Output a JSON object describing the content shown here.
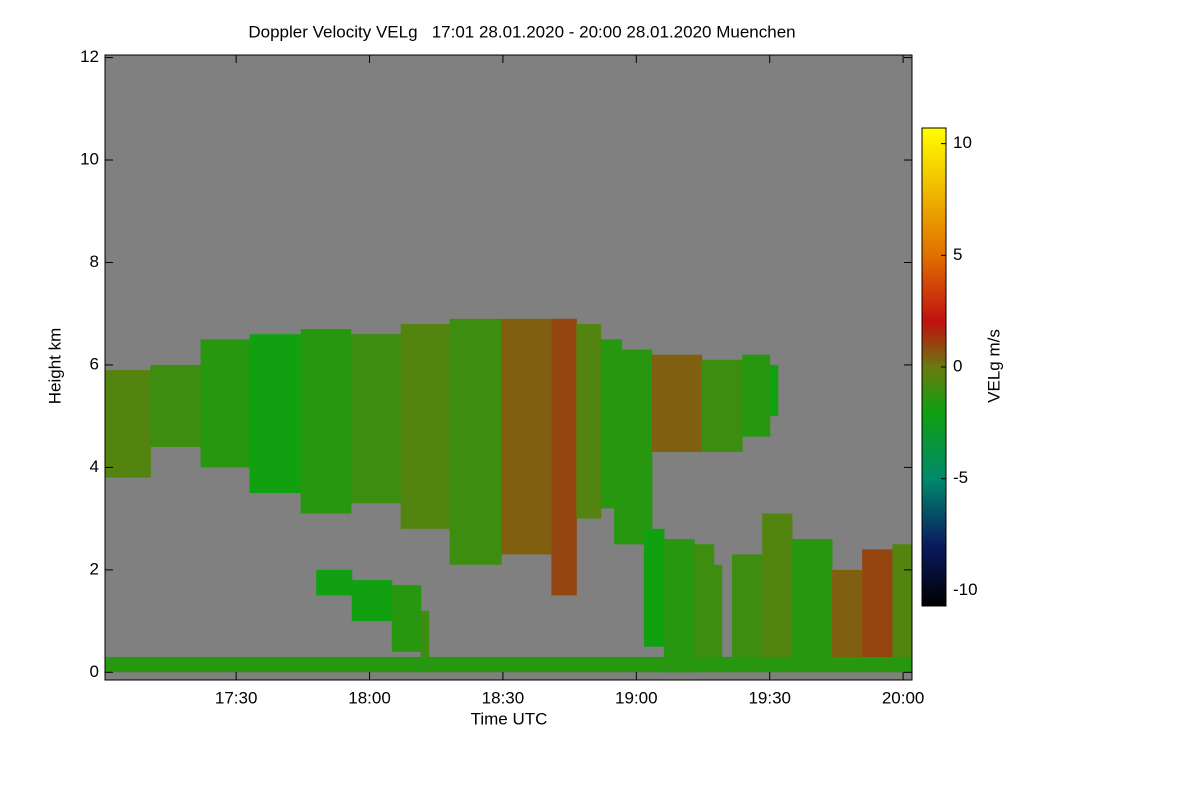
{
  "chart_data": {
    "type": "time-height",
    "title": "Doppler Velocity VELg   17:01 28.01.2020 - 20:00 28.01.2020 Muenchen",
    "xlabel": "Time UTC",
    "ylabel": "Height km",
    "colorbar_label": "VELg m/s",
    "background": "#808080",
    "xlim": [
      1020.5,
      1202
    ],
    "xticks": [
      {
        "value": 1050,
        "label": "17:30"
      },
      {
        "value": 1080,
        "label": "18:00"
      },
      {
        "value": 1110,
        "label": "18:30"
      },
      {
        "value": 1140,
        "label": "19:00"
      },
      {
        "value": 1170,
        "label": "19:30"
      },
      {
        "value": 1200,
        "label": "20:00"
      }
    ],
    "ylim": [
      -0.15,
      12.05
    ],
    "yticks": [
      0,
      2,
      4,
      6,
      8,
      10,
      12
    ],
    "clim": [
      -10.7,
      10.7
    ],
    "cticks": [
      -10,
      -5,
      0,
      5,
      10
    ],
    "colormap": [
      {
        "value": -10.7,
        "color": "#000000"
      },
      {
        "value": -8,
        "color": "#0a1a60"
      },
      {
        "value": -5,
        "color": "#008a6a"
      },
      {
        "value": -2,
        "color": "#10a010"
      },
      {
        "value": 0,
        "color": "#6a7a10"
      },
      {
        "value": 2,
        "color": "#c01010"
      },
      {
        "value": 5,
        "color": "#e07000"
      },
      {
        "value": 10.7,
        "color": "#ffff00"
      }
    ],
    "layers": [
      {
        "x": [
          1020.5,
          1030.7,
          1042,
          1053,
          1064.5,
          1075.8,
          1087,
          1098,
          1109.6,
          1120.9,
          1126.5,
          1132,
          1136.7,
          1143.5,
          1154.7,
          1163.8,
          1170
        ],
        "base": [
          3.8,
          4.4,
          4.0,
          3.5,
          3.1,
          3.3,
          2.8,
          2.1,
          2.3,
          1.5,
          3.0,
          3.2,
          2.5,
          4.3,
          4.3,
          4.6,
          5.0
        ],
        "top": [
          5.9,
          6.0,
          6.5,
          6.6,
          6.7,
          6.6,
          6.8,
          6.9,
          6.9,
          6.9,
          6.8,
          6.5,
          6.3,
          6.2,
          6.1,
          6.2,
          6.0
        ],
        "velocity": [
          -0.5,
          -1,
          -1.5,
          -2,
          -1.5,
          -1,
          -0.5,
          -1,
          0.5,
          1,
          -0.5,
          -1.5,
          -1.5,
          0.5,
          -1,
          -1.5,
          -2
        ]
      },
      {
        "x": [
          1135,
          1141.7,
          1146.2,
          1153,
          1157.4
        ],
        "base": [
          2.5,
          0.5,
          0,
          0.1,
          0.2
        ],
        "top": [
          3.2,
          2.8,
          2.6,
          2.5,
          2.1
        ],
        "velocity": [
          -1.5,
          -2,
          -1.5,
          -1,
          -1
        ]
      },
      {
        "x": [
          1068,
          1076,
          1085,
          1091.5
        ],
        "base": [
          1.5,
          1.0,
          0.4,
          0.2
        ],
        "top": [
          2.0,
          1.8,
          1.7,
          1.2
        ],
        "velocity": [
          -2,
          -2,
          -1.5,
          -1
        ]
      },
      {
        "x": [
          1161.5,
          1168.3,
          1175,
          1184,
          1190.8,
          1197.6,
          1202
        ],
        "base": [
          0.1,
          0.2,
          0.2,
          0.1,
          0.1,
          0.1,
          0.2
        ],
        "top": [
          2.3,
          3.1,
          2.6,
          2.0,
          2.4,
          2.5,
          2.3
        ],
        "velocity": [
          -1,
          -0.5,
          -1.5,
          0.5,
          1,
          -0.5,
          -1.5
        ]
      },
      {
        "x": [
          1020.5,
          1202
        ],
        "base": [
          0,
          0
        ],
        "top": [
          0.3,
          0.3
        ],
        "velocity": [
          -1.5,
          -1.5
        ]
      }
    ]
  }
}
